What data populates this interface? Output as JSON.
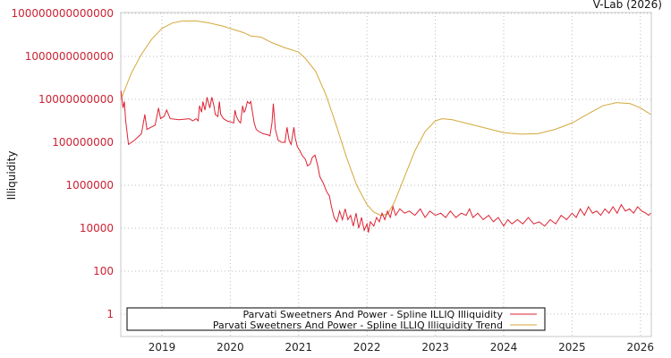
{
  "credit": "V-Lab (2026)",
  "chart_data": {
    "type": "line",
    "title": "",
    "xlabel": "",
    "ylabel": "Illiquidity",
    "yscale": "log",
    "ylim": [
      1,
      100000000000000
    ],
    "xlim": [
      2018.4,
      2026.15
    ],
    "grid": true,
    "legend_position": "bottom-left inside",
    "y_ticks": [
      {
        "value": 100000000000000,
        "label": "100000000000000"
      },
      {
        "value": 1000000000000,
        "label": "1000000000000"
      },
      {
        "value": 10000000000,
        "label": "10000000000"
      },
      {
        "value": 100000000,
        "label": "100000000"
      },
      {
        "value": 1000000,
        "label": "1000000"
      },
      {
        "value": 10000,
        "label": "10000"
      },
      {
        "value": 100,
        "label": "100"
      },
      {
        "value": 1,
        "label": "1"
      }
    ],
    "x_ticks": [
      {
        "value": 2019,
        "label": "2019"
      },
      {
        "value": 2020,
        "label": "2020"
      },
      {
        "value": 2021,
        "label": "2021"
      },
      {
        "value": 2022,
        "label": "2022"
      },
      {
        "value": 2023,
        "label": "2023"
      },
      {
        "value": 2024,
        "label": "2024"
      },
      {
        "value": 2025,
        "label": "2025"
      },
      {
        "value": 2026,
        "label": "2026"
      }
    ],
    "series": [
      {
        "name": "Parvati Sweetners And Power - Spline ILLIQ Illiquidity",
        "color": "#dd2233",
        "x_log10_y": [
          [
            2018.4,
            10.4
          ],
          [
            2018.43,
            9.6
          ],
          [
            2018.45,
            9.9
          ],
          [
            2018.47,
            9.0
          ],
          [
            2018.51,
            7.9
          ],
          [
            2018.6,
            8.1
          ],
          [
            2018.7,
            8.4
          ],
          [
            2018.75,
            9.3
          ],
          [
            2018.78,
            8.6
          ],
          [
            2018.9,
            8.8
          ],
          [
            2018.95,
            9.6
          ],
          [
            2018.98,
            9.1
          ],
          [
            2019.03,
            9.2
          ],
          [
            2019.07,
            9.5
          ],
          [
            2019.12,
            9.1
          ],
          [
            2019.25,
            9.05
          ],
          [
            2019.4,
            9.1
          ],
          [
            2019.45,
            9.0
          ],
          [
            2019.5,
            9.1
          ],
          [
            2019.53,
            9.0
          ],
          [
            2019.55,
            9.7
          ],
          [
            2019.58,
            9.4
          ],
          [
            2019.6,
            9.9
          ],
          [
            2019.63,
            9.5
          ],
          [
            2019.66,
            10.1
          ],
          [
            2019.7,
            9.6
          ],
          [
            2019.73,
            10.1
          ],
          [
            2019.76,
            9.7
          ],
          [
            2019.78,
            9.3
          ],
          [
            2019.82,
            9.2
          ],
          [
            2019.84,
            9.9
          ],
          [
            2019.86,
            9.3
          ],
          [
            2019.9,
            9.1
          ],
          [
            2019.95,
            9.0
          ],
          [
            2020.05,
            8.9
          ],
          [
            2020.07,
            9.5
          ],
          [
            2020.09,
            9.2
          ],
          [
            2020.12,
            9.0
          ],
          [
            2020.15,
            8.9
          ],
          [
            2020.18,
            9.7
          ],
          [
            2020.2,
            9.4
          ],
          [
            2020.22,
            9.5
          ],
          [
            2020.25,
            9.9
          ],
          [
            2020.28,
            9.8
          ],
          [
            2020.3,
            9.9
          ],
          [
            2020.35,
            8.9
          ],
          [
            2020.38,
            8.6
          ],
          [
            2020.42,
            8.5
          ],
          [
            2020.48,
            8.4
          ],
          [
            2020.55,
            8.35
          ],
          [
            2020.58,
            8.3
          ],
          [
            2020.61,
            8.9
          ],
          [
            2020.63,
            9.8
          ],
          [
            2020.66,
            8.6
          ],
          [
            2020.7,
            8.1
          ],
          [
            2020.75,
            8.0
          ],
          [
            2020.8,
            8.0
          ],
          [
            2020.83,
            8.7
          ],
          [
            2020.86,
            8.1
          ],
          [
            2020.89,
            7.9
          ],
          [
            2020.93,
            8.7
          ],
          [
            2020.95,
            8.2
          ],
          [
            2020.98,
            7.8
          ],
          [
            2021.02,
            7.6
          ],
          [
            2021.05,
            7.4
          ],
          [
            2021.1,
            7.2
          ],
          [
            2021.13,
            6.9
          ],
          [
            2021.17,
            7.0
          ],
          [
            2021.2,
            7.3
          ],
          [
            2021.24,
            7.4
          ],
          [
            2021.28,
            6.9
          ],
          [
            2021.31,
            6.4
          ],
          [
            2021.36,
            6.1
          ],
          [
            2021.41,
            5.7
          ],
          [
            2021.45,
            5.5
          ],
          [
            2021.48,
            5.0
          ],
          [
            2021.52,
            4.5
          ],
          [
            2021.56,
            4.3
          ],
          [
            2021.6,
            4.8
          ],
          [
            2021.64,
            4.4
          ],
          [
            2021.68,
            4.9
          ],
          [
            2021.72,
            4.4
          ],
          [
            2021.76,
            4.6
          ],
          [
            2021.8,
            4.1
          ],
          [
            2021.84,
            4.7
          ],
          [
            2021.88,
            4.0
          ],
          [
            2021.92,
            4.5
          ],
          [
            2021.96,
            3.9
          ],
          [
            2022.0,
            4.2
          ],
          [
            2022.02,
            3.8
          ],
          [
            2022.05,
            4.3
          ],
          [
            2022.1,
            4.1
          ],
          [
            2022.14,
            4.5
          ],
          [
            2022.18,
            4.3
          ],
          [
            2022.22,
            4.7
          ],
          [
            2022.26,
            4.4
          ],
          [
            2022.3,
            4.8
          ],
          [
            2022.34,
            4.5
          ],
          [
            2022.38,
            5.0
          ],
          [
            2022.42,
            4.6
          ],
          [
            2022.48,
            4.9
          ],
          [
            2022.55,
            4.7
          ],
          [
            2022.62,
            4.8
          ],
          [
            2022.7,
            4.6
          ],
          [
            2022.78,
            4.9
          ],
          [
            2022.85,
            4.5
          ],
          [
            2022.92,
            4.8
          ],
          [
            2023.0,
            4.6
          ],
          [
            2023.08,
            4.7
          ],
          [
            2023.15,
            4.5
          ],
          [
            2023.22,
            4.8
          ],
          [
            2023.3,
            4.5
          ],
          [
            2023.38,
            4.7
          ],
          [
            2023.45,
            4.6
          ],
          [
            2023.5,
            4.9
          ],
          [
            2023.55,
            4.5
          ],
          [
            2023.62,
            4.7
          ],
          [
            2023.7,
            4.4
          ],
          [
            2023.78,
            4.6
          ],
          [
            2023.85,
            4.3
          ],
          [
            2023.92,
            4.5
          ],
          [
            2024.0,
            4.1
          ],
          [
            2024.06,
            4.4
          ],
          [
            2024.12,
            4.2
          ],
          [
            2024.2,
            4.4
          ],
          [
            2024.28,
            4.2
          ],
          [
            2024.36,
            4.5
          ],
          [
            2024.44,
            4.2
          ],
          [
            2024.52,
            4.3
          ],
          [
            2024.6,
            4.1
          ],
          [
            2024.68,
            4.4
          ],
          [
            2024.76,
            4.2
          ],
          [
            2024.84,
            4.6
          ],
          [
            2024.92,
            4.4
          ],
          [
            2025.0,
            4.7
          ],
          [
            2025.06,
            4.5
          ],
          [
            2025.12,
            4.9
          ],
          [
            2025.18,
            4.6
          ],
          [
            2025.24,
            5.0
          ],
          [
            2025.3,
            4.7
          ],
          [
            2025.36,
            4.8
          ],
          [
            2025.42,
            4.6
          ],
          [
            2025.48,
            4.9
          ],
          [
            2025.54,
            4.7
          ],
          [
            2025.6,
            5.0
          ],
          [
            2025.66,
            4.7
          ],
          [
            2025.72,
            5.1
          ],
          [
            2025.78,
            4.8
          ],
          [
            2025.84,
            4.9
          ],
          [
            2025.9,
            4.7
          ],
          [
            2025.96,
            5.0
          ],
          [
            2026.02,
            4.8
          ],
          [
            2026.08,
            4.7
          ],
          [
            2026.12,
            4.6
          ],
          [
            2026.15,
            4.7
          ]
        ]
      },
      {
        "name": "Parvati Sweetners And Power - Spline ILLIQ Illiquidity Trend",
        "color": "#d4a83a",
        "x_log10_y": [
          [
            2018.4,
            10.0
          ],
          [
            2018.55,
            11.2
          ],
          [
            2018.7,
            12.1
          ],
          [
            2018.85,
            12.8
          ],
          [
            2019.0,
            13.3
          ],
          [
            2019.15,
            13.55
          ],
          [
            2019.3,
            13.65
          ],
          [
            2019.5,
            13.65
          ],
          [
            2019.7,
            13.55
          ],
          [
            2019.9,
            13.4
          ],
          [
            2020.05,
            13.25
          ],
          [
            2020.2,
            13.1
          ],
          [
            2020.3,
            12.95
          ],
          [
            2020.45,
            12.9
          ],
          [
            2020.6,
            12.65
          ],
          [
            2020.8,
            12.4
          ],
          [
            2021.0,
            12.2
          ],
          [
            2021.1,
            11.9
          ],
          [
            2021.25,
            11.3
          ],
          [
            2021.4,
            10.2
          ],
          [
            2021.55,
            8.8
          ],
          [
            2021.7,
            7.3
          ],
          [
            2021.85,
            6.0
          ],
          [
            2022.0,
            5.1
          ],
          [
            2022.1,
            4.75
          ],
          [
            2022.2,
            4.6
          ],
          [
            2022.3,
            4.65
          ],
          [
            2022.4,
            5.2
          ],
          [
            2022.55,
            6.4
          ],
          [
            2022.7,
            7.6
          ],
          [
            2022.85,
            8.5
          ],
          [
            2023.0,
            9.0
          ],
          [
            2023.1,
            9.1
          ],
          [
            2023.25,
            9.05
          ],
          [
            2023.5,
            8.85
          ],
          [
            2023.75,
            8.65
          ],
          [
            2024.0,
            8.45
          ],
          [
            2024.25,
            8.38
          ],
          [
            2024.5,
            8.4
          ],
          [
            2024.75,
            8.6
          ],
          [
            2025.0,
            8.9
          ],
          [
            2025.25,
            9.35
          ],
          [
            2025.45,
            9.7
          ],
          [
            2025.65,
            9.85
          ],
          [
            2025.85,
            9.8
          ],
          [
            2026.0,
            9.6
          ],
          [
            2026.15,
            9.3
          ]
        ]
      }
    ]
  }
}
